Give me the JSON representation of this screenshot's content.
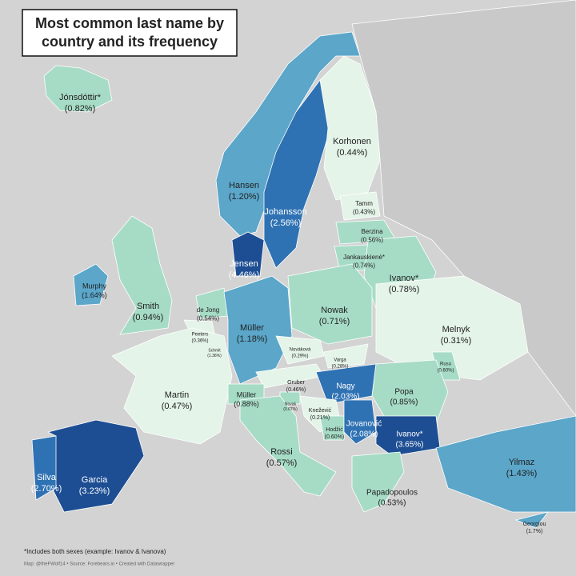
{
  "title": [
    "Most common last name by",
    "country and its frequency"
  ],
  "countries": [
    {
      "surname": "Jónsdóttir*",
      "value": 0.82,
      "label": "(0.82%)"
    },
    {
      "surname": "Hansen",
      "value": 1.2,
      "label": "(1.20%)"
    },
    {
      "surname": "Johansson",
      "value": 2.56,
      "label": "(2.56%)"
    },
    {
      "surname": "Korhonen",
      "value": 0.44,
      "label": "(0.44%)"
    },
    {
      "surname": "Tamm",
      "value": 0.43,
      "label": "(0.43%)"
    },
    {
      "surname": "Berzina",
      "value": 0.56,
      "label": "(0.56%)"
    },
    {
      "surname": "Jankauskienė*",
      "value": 0.74,
      "label": "(0.74%)"
    },
    {
      "surname": "Ivanov*",
      "value": 0.78,
      "label": "(0.78%)"
    },
    {
      "surname": "Jensen",
      "value": 4.46,
      "label": "(4.46%)"
    },
    {
      "surname": "Murphy",
      "value": 1.64,
      "label": "(1.64%)"
    },
    {
      "surname": "Smith",
      "value": 0.94,
      "label": "(0.94%)"
    },
    {
      "surname": "de Jong",
      "value": 0.54,
      "label": "(0.54%)"
    },
    {
      "surname": "Peeters",
      "value": 0.36,
      "label": "(0.36%)"
    },
    {
      "surname": "Schmit",
      "value": 1.36,
      "label": "(1.36%)"
    },
    {
      "surname": "Müller",
      "value": 1.18,
      "label": "(1.18%)"
    },
    {
      "surname": "Nowak",
      "value": 0.71,
      "label": "(0.71%)"
    },
    {
      "surname": "Melnyk",
      "value": 0.31,
      "label": "(0.31%)"
    },
    {
      "surname": "Nováková",
      "value": 0.29,
      "label": "(0.29%)"
    },
    {
      "surname": "Varga",
      "value": 0.28,
      "label": "(0.28%)"
    },
    {
      "surname": "Gruber",
      "value": 0.46,
      "label": "(0.46%)"
    },
    {
      "surname": "Nagy",
      "value": 2.03,
      "label": "(2.03%)"
    },
    {
      "surname": "Rusu",
      "value": 0.6,
      "label": "(0.60%)"
    },
    {
      "surname": "Popa",
      "value": 0.85,
      "label": "(0.85%)"
    },
    {
      "surname": "Martin",
      "value": 0.47,
      "label": "(0.47%)"
    },
    {
      "surname": "Müller",
      "value": 0.88,
      "label": "(0.88%)"
    },
    {
      "surname": "Novak",
      "value": 0.67,
      "label": "(0.67%)"
    },
    {
      "surname": "Knežević",
      "value": 0.21,
      "label": "(0.21%)"
    },
    {
      "surname": "Hodžić",
      "value": 0.6,
      "label": "(0.60%)"
    },
    {
      "surname": "Jovanović",
      "value": 2.08,
      "label": "(2.08%)"
    },
    {
      "surname": "Ivanov*",
      "value": 3.65,
      "label": "(3.65%)"
    },
    {
      "surname": "Rossi",
      "value": 0.57,
      "label": "(0.57%)"
    },
    {
      "surname": "Garcia",
      "value": 3.23,
      "label": "(3.23%)"
    },
    {
      "surname": "Silva",
      "value": 2.7,
      "label": "(2.70%)"
    },
    {
      "surname": "Papadopoulos",
      "value": 0.53,
      "label": "(0.53%)"
    },
    {
      "surname": "Yilmaz",
      "value": 1.43,
      "label": "(1.43%)"
    },
    {
      "surname": "Georgiou",
      "value": 1.7,
      "label": "(1.7%)"
    }
  ],
  "footnote": "*Includes both sexes (example: Ivanov & Ivanova)",
  "credit": "Map: @theFWolf14 • Source: Forebears.io • Created with Datawrapper"
}
